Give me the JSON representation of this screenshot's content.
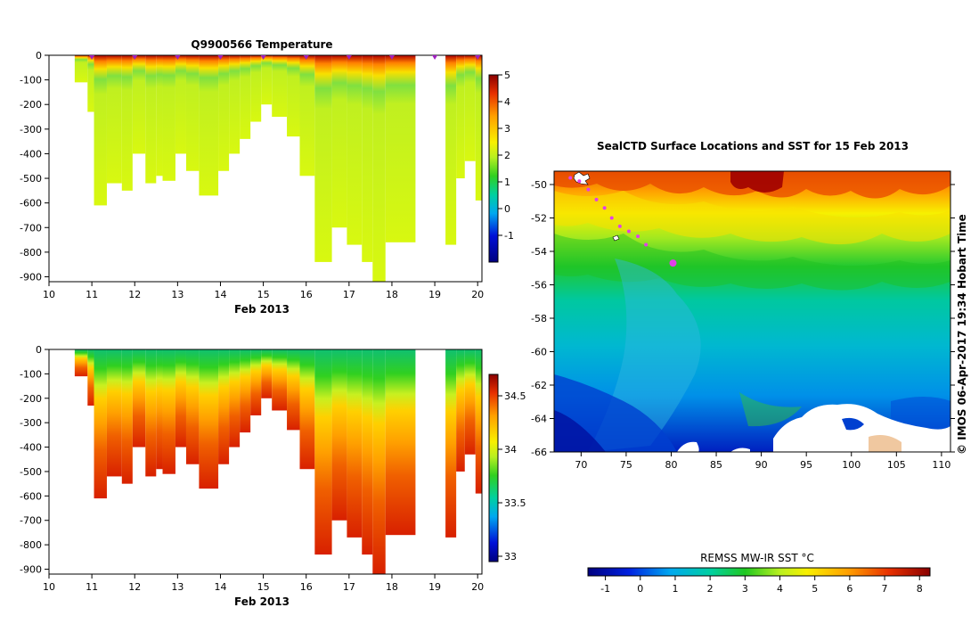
{
  "chart_data": [
    {
      "type": "heatmap",
      "title": "Q9900566  Temperature",
      "xlabel": "Feb 2013",
      "xticks": [
        "10",
        "11",
        "12",
        "13",
        "14",
        "15",
        "16",
        "17",
        "18",
        "19",
        "20"
      ],
      "xlim": [
        10,
        20.1
      ],
      "yticks": [
        "0",
        "-100",
        "-200",
        "-300",
        "-400",
        "-500",
        "-600",
        "-700",
        "-800",
        "-900"
      ],
      "ylim": [
        -920,
        0
      ],
      "colorbar": {
        "ticks": [
          "5",
          "4",
          "3",
          "2",
          "1",
          "0",
          "-1"
        ],
        "range": [
          -2,
          5
        ]
      },
      "profile_markers_x": [
        11,
        12,
        13,
        14,
        15,
        16,
        17,
        18,
        19,
        20
      ],
      "columns": [
        {
          "x0": 10.6,
          "x1": 10.9,
          "bottom": -110
        },
        {
          "x0": 10.9,
          "x1": 11.05,
          "bottom": -230
        },
        {
          "x0": 11.05,
          "x1": 11.35,
          "bottom": -610
        },
        {
          "x0": 11.35,
          "x1": 11.7,
          "bottom": -520
        },
        {
          "x0": 11.7,
          "x1": 11.95,
          "bottom": -550
        },
        {
          "x0": 11.95,
          "x1": 12.25,
          "bottom": -400
        },
        {
          "x0": 12.25,
          "x1": 12.5,
          "bottom": -520
        },
        {
          "x0": 12.5,
          "x1": 12.65,
          "bottom": -490
        },
        {
          "x0": 12.65,
          "x1": 12.95,
          "bottom": -510
        },
        {
          "x0": 12.95,
          "x1": 13.2,
          "bottom": -400
        },
        {
          "x0": 13.2,
          "x1": 13.5,
          "bottom": -470
        },
        {
          "x0": 13.5,
          "x1": 13.95,
          "bottom": -570
        },
        {
          "x0": 13.95,
          "x1": 14.2,
          "bottom": -470
        },
        {
          "x0": 14.2,
          "x1": 14.45,
          "bottom": -400
        },
        {
          "x0": 14.45,
          "x1": 14.7,
          "bottom": -340
        },
        {
          "x0": 14.7,
          "x1": 14.95,
          "bottom": -270
        },
        {
          "x0": 14.95,
          "x1": 15.2,
          "bottom": -200
        },
        {
          "x0": 15.2,
          "x1": 15.55,
          "bottom": -250
        },
        {
          "x0": 15.55,
          "x1": 15.85,
          "bottom": -330
        },
        {
          "x0": 15.85,
          "x1": 16.2,
          "bottom": -490
        },
        {
          "x0": 16.2,
          "x1": 16.6,
          "bottom": -840
        },
        {
          "x0": 16.6,
          "x1": 16.95,
          "bottom": -700
        },
        {
          "x0": 16.95,
          "x1": 17.3,
          "bottom": -770
        },
        {
          "x0": 17.3,
          "x1": 17.55,
          "bottom": -840
        },
        {
          "x0": 17.55,
          "x1": 17.85,
          "bottom": -920
        },
        {
          "x0": 17.85,
          "x1": 18.55,
          "bottom": -760
        },
        {
          "x0": 19.25,
          "x1": 19.5,
          "bottom": -770
        },
        {
          "x0": 19.5,
          "x1": 19.7,
          "bottom": -500
        },
        {
          "x0": 19.7,
          "x1": 19.95,
          "bottom": -430
        },
        {
          "x0": 19.95,
          "x1": 20.1,
          "bottom": -590
        }
      ]
    },
    {
      "type": "heatmap",
      "title": "",
      "xlabel": "Feb 2013",
      "xticks": [
        "10",
        "11",
        "12",
        "13",
        "14",
        "15",
        "16",
        "17",
        "18",
        "19",
        "20"
      ],
      "xlim": [
        10,
        20.1
      ],
      "yticks": [
        "0",
        "-100",
        "-200",
        "-300",
        "-400",
        "-500",
        "-600",
        "-700",
        "-800",
        "-900"
      ],
      "ylim": [
        -920,
        0
      ],
      "colorbar": {
        "ticks": [
          "34.5",
          "34",
          "33.5",
          "33"
        ],
        "range": [
          32.95,
          34.7
        ]
      }
    },
    {
      "type": "heatmap",
      "title": "SealCTD Surface Locations and SST for 15 Feb 2013",
      "xticks": [
        "70",
        "75",
        "80",
        "85",
        "90",
        "95",
        "100",
        "105",
        "110"
      ],
      "xlim": [
        67,
        111
      ],
      "yticks": [
        "-50",
        "-52",
        "-54",
        "-56",
        "-58",
        "-60",
        "-62",
        "-64",
        "-66"
      ],
      "ylim": [
        -66,
        -49.2
      ],
      "side_label": "© IMOS 06-Apr-2017 19:34 Hobart Time",
      "colorbar": {
        "label": "REMSS MW-IR SST °C",
        "ticks": [
          "-1",
          "0",
          "1",
          "2",
          "3",
          "4",
          "5",
          "6",
          "7",
          "8"
        ],
        "range": [
          -1.5,
          8.3
        ]
      },
      "track": [
        {
          "lon": 68.8,
          "lat": -49.6
        },
        {
          "lon": 69.8,
          "lat": -49.8
        },
        {
          "lon": 70.8,
          "lat": -50.3
        },
        {
          "lon": 71.7,
          "lat": -50.9
        },
        {
          "lon": 72.6,
          "lat": -51.4
        },
        {
          "lon": 73.4,
          "lat": -52.0
        },
        {
          "lon": 74.3,
          "lat": -52.5
        },
        {
          "lon": 75.3,
          "lat": -52.8
        },
        {
          "lon": 76.3,
          "lat": -53.1
        },
        {
          "lon": 77.2,
          "lat": -53.6
        },
        {
          "lon": 80.2,
          "lat": -54.7
        }
      ],
      "track_color": "#e040e8"
    }
  ]
}
